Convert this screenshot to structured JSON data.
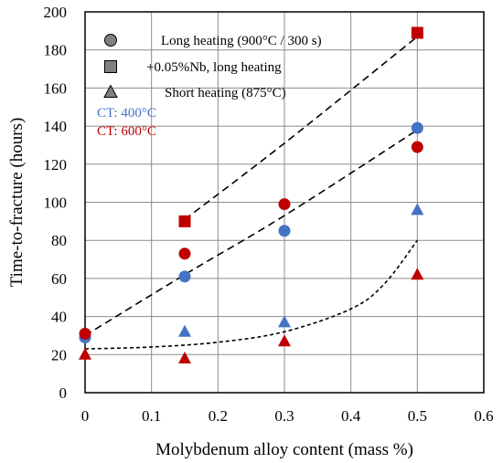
{
  "chart_data": {
    "type": "scatter",
    "xlabel": "Molybdenum alloy content (mass %)",
    "ylabel": "Time-to-fracture (hours)",
    "xlim": [
      0,
      0.6
    ],
    "ylim": [
      0,
      200
    ],
    "x_ticks": [
      "0",
      "0.1",
      "0.2",
      "0.3",
      "0.4",
      "0.5",
      "0.6"
    ],
    "y_ticks": [
      "0",
      "20",
      "40",
      "60",
      "80",
      "100",
      "120",
      "140",
      "160",
      "180",
      "200"
    ],
    "grid": true,
    "legend": {
      "placement": "top-left",
      "entries": [
        {
          "marker": "circle",
          "label": "Long heating (900°C / 300 s)"
        },
        {
          "marker": "square",
          "label": "+0.05%Nb, long heating"
        },
        {
          "marker": "triangle",
          "label": "Short heating (875°C)"
        }
      ],
      "ct_labels": [
        {
          "label": "CT: 400°C",
          "color": "#4472C4"
        },
        {
          "label": "CT: 600°C",
          "color": "#C00000"
        }
      ]
    },
    "colors": {
      "ct400": "#4472C4",
      "ct600": "#C00000",
      "legend_marker": "#808080"
    },
    "series": [
      {
        "marker": "circle",
        "color": "#4472C4",
        "points": [
          [
            0,
            29
          ],
          [
            0.15,
            61
          ],
          [
            0.3,
            85
          ],
          [
            0.5,
            139
          ]
        ]
      },
      {
        "marker": "circle",
        "color": "#C00000",
        "points": [
          [
            0,
            31
          ],
          [
            0.15,
            73
          ],
          [
            0.3,
            99
          ],
          [
            0.5,
            129
          ]
        ]
      },
      {
        "marker": "square",
        "color": "#C00000",
        "points": [
          [
            0.15,
            90
          ],
          [
            0.5,
            189
          ]
        ]
      },
      {
        "marker": "triangle",
        "color": "#4472C4",
        "points": [
          [
            0.15,
            32
          ],
          [
            0.3,
            37
          ],
          [
            0.5,
            96
          ]
        ]
      },
      {
        "marker": "triangle",
        "color": "#C00000",
        "points": [
          [
            0,
            20
          ],
          [
            0.15,
            18
          ],
          [
            0.3,
            27
          ],
          [
            0.5,
            62
          ]
        ]
      }
    ],
    "trendlines": [
      {
        "style": "dashed",
        "points": [
          [
            0.15,
            91
          ],
          [
            0.3,
            131
          ],
          [
            0.5,
            187
          ]
        ]
      },
      {
        "style": "dashed",
        "points": [
          [
            0,
            30
          ],
          [
            0.15,
            62
          ],
          [
            0.3,
            93
          ],
          [
            0.5,
            138
          ]
        ]
      },
      {
        "style": "short-dashed",
        "points": [
          [
            0,
            23
          ],
          [
            0.1,
            24
          ],
          [
            0.2,
            26.5
          ],
          [
            0.3,
            32
          ],
          [
            0.4,
            44
          ],
          [
            0.45,
            57
          ],
          [
            0.5,
            80
          ]
        ]
      }
    ]
  }
}
